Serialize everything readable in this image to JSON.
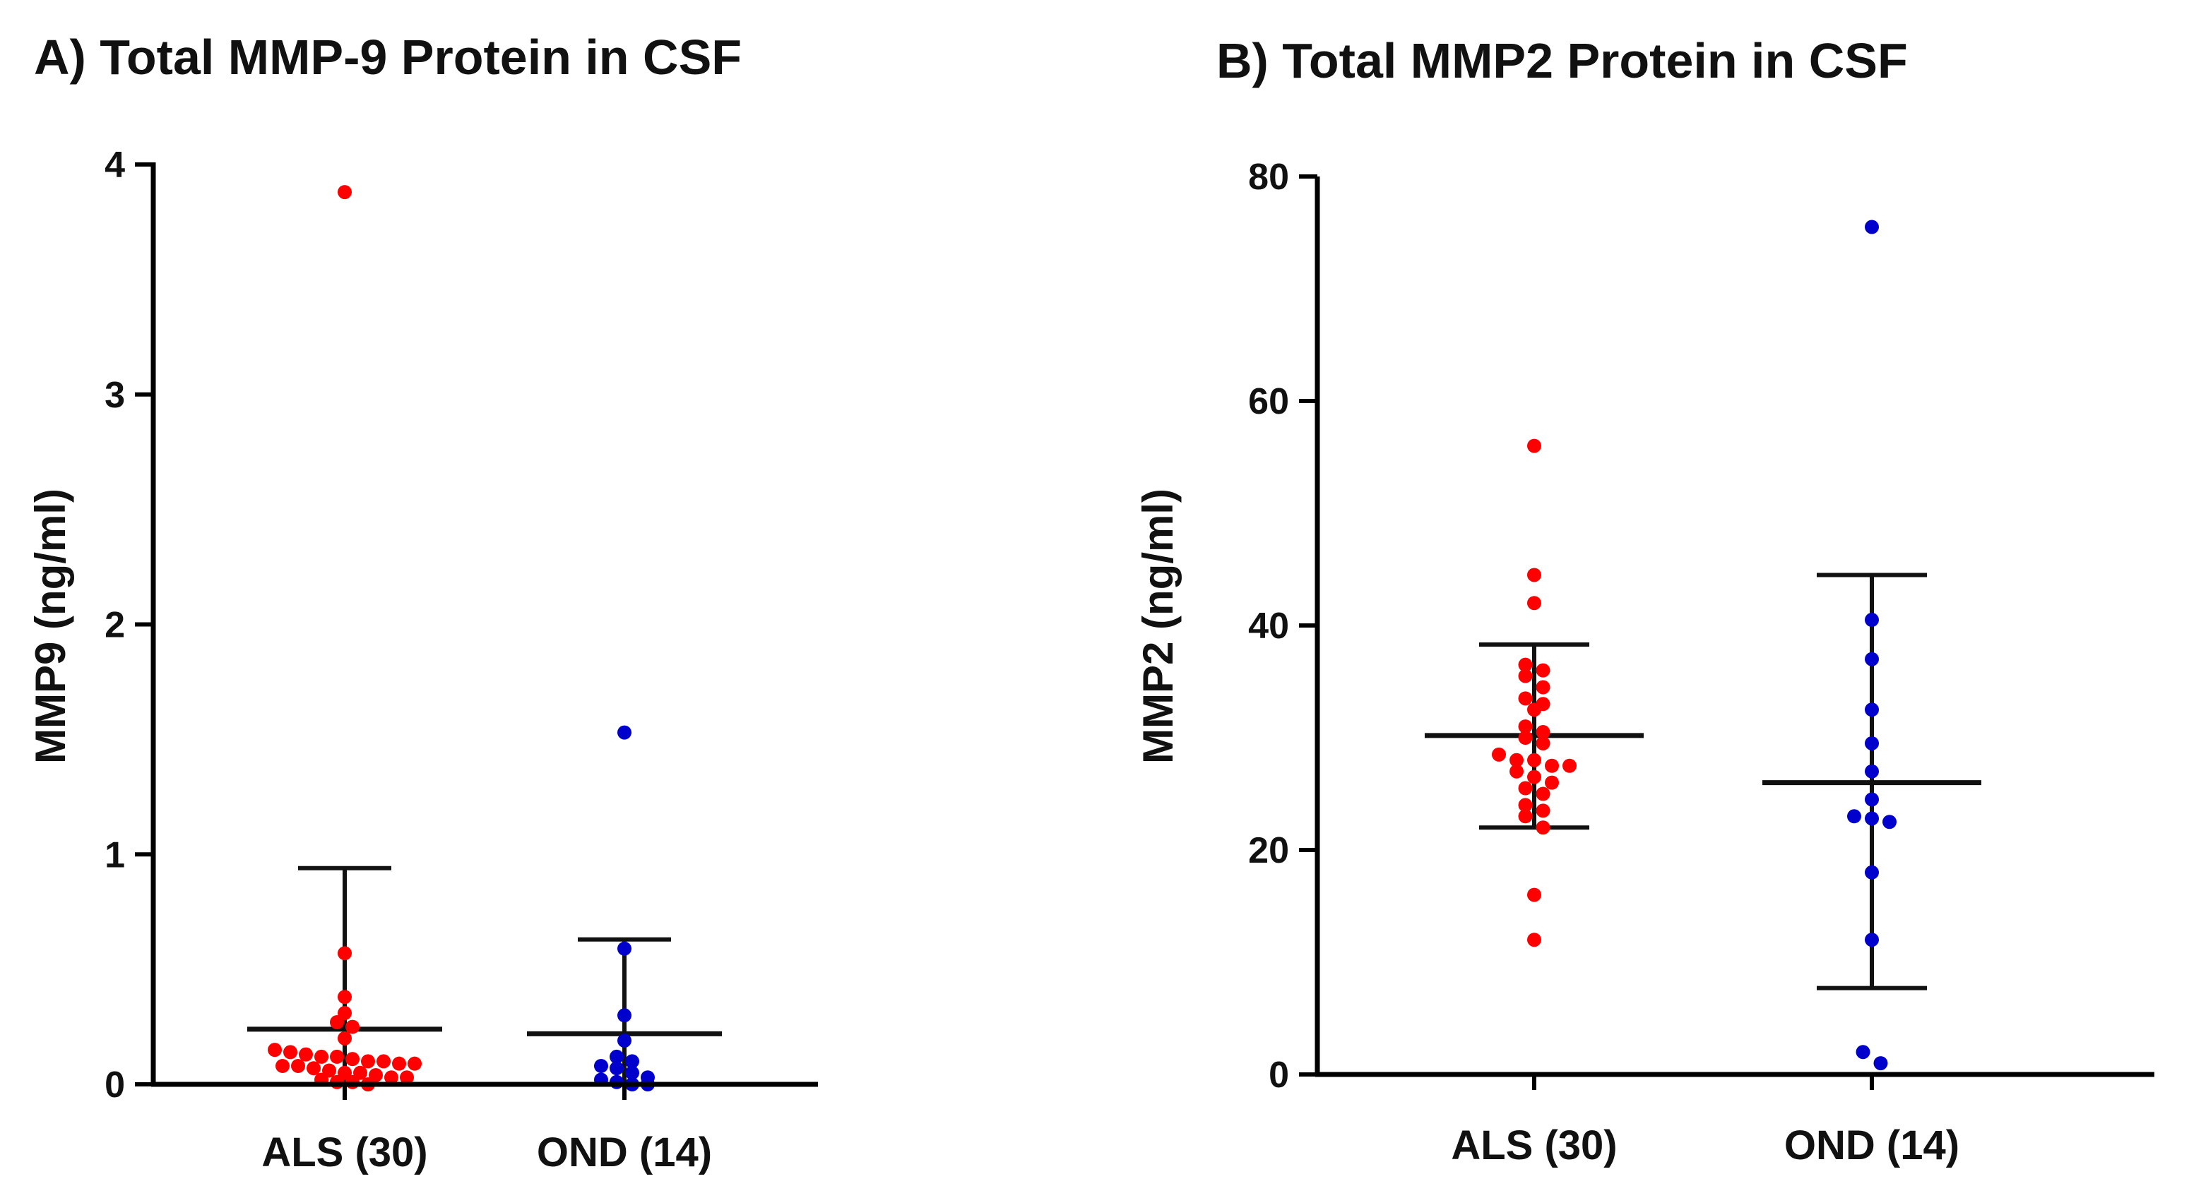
{
  "chart_data": [
    {
      "type": "scatter",
      "title": "A) Total MMP-9 Protein in CSF",
      "ylabel": "MMP9 (ng/ml)",
      "xlabel": "",
      "ylim": [
        0,
        4
      ],
      "yticks": [
        0,
        1,
        2,
        3,
        4
      ],
      "grid": false,
      "categories": [
        "ALS (30)",
        "OND (14)"
      ],
      "series": [
        {
          "color": "#ff0000",
          "values": [
            3.88,
            0.57,
            0.38,
            0.31,
            0.27,
            0.25,
            0.2,
            0.15,
            0.14,
            0.13,
            0.12,
            0.12,
            0.11,
            0.1,
            0.1,
            0.09,
            0.09,
            0.08,
            0.08,
            0.07,
            0.06,
            0.05,
            0.05,
            0.04,
            0.03,
            0.03,
            0.02,
            0.01,
            0.01,
            0.0
          ],
          "mean": 0.24,
          "error_upper": 0.94,
          "error_lower": 0.0
        },
        {
          "color": "#0000cc",
          "values": [
            1.53,
            0.59,
            0.3,
            0.19,
            0.12,
            0.1,
            0.08,
            0.07,
            0.05,
            0.03,
            0.02,
            0.01,
            0.0,
            0.0
          ],
          "mean": 0.22,
          "error_upper": 0.63,
          "error_lower": 0.0
        }
      ]
    },
    {
      "type": "scatter",
      "title": "B) Total MMP2 Protein in CSF",
      "ylabel": "MMP2 (ng/ml)",
      "xlabel": "",
      "ylim": [
        0,
        80
      ],
      "yticks": [
        0,
        20,
        40,
        60,
        80
      ],
      "grid": false,
      "categories": [
        "ALS (30)",
        "OND (14)"
      ],
      "series": [
        {
          "color": "#ff0000",
          "values": [
            56.0,
            44.5,
            42.0,
            36.5,
            36.0,
            35.5,
            34.5,
            33.5,
            33.0,
            32.5,
            31.0,
            30.5,
            30.0,
            29.5,
            28.5,
            28.0,
            28.0,
            27.5,
            27.5,
            27.0,
            26.5,
            26.0,
            25.5,
            25.0,
            24.0,
            23.5,
            23.0,
            22.0,
            16.0,
            12.0
          ],
          "mean": 30.2,
          "error_upper": 38.3,
          "error_lower": 22.0
        },
        {
          "color": "#0000cc",
          "values": [
            75.5,
            40.5,
            37.0,
            32.5,
            29.5,
            27.0,
            24.5,
            23.0,
            22.8,
            22.5,
            18.0,
            12.0,
            2.0,
            1.0
          ],
          "mean": 26.0,
          "error_upper": 44.5,
          "error_lower": 7.7
        }
      ]
    }
  ]
}
